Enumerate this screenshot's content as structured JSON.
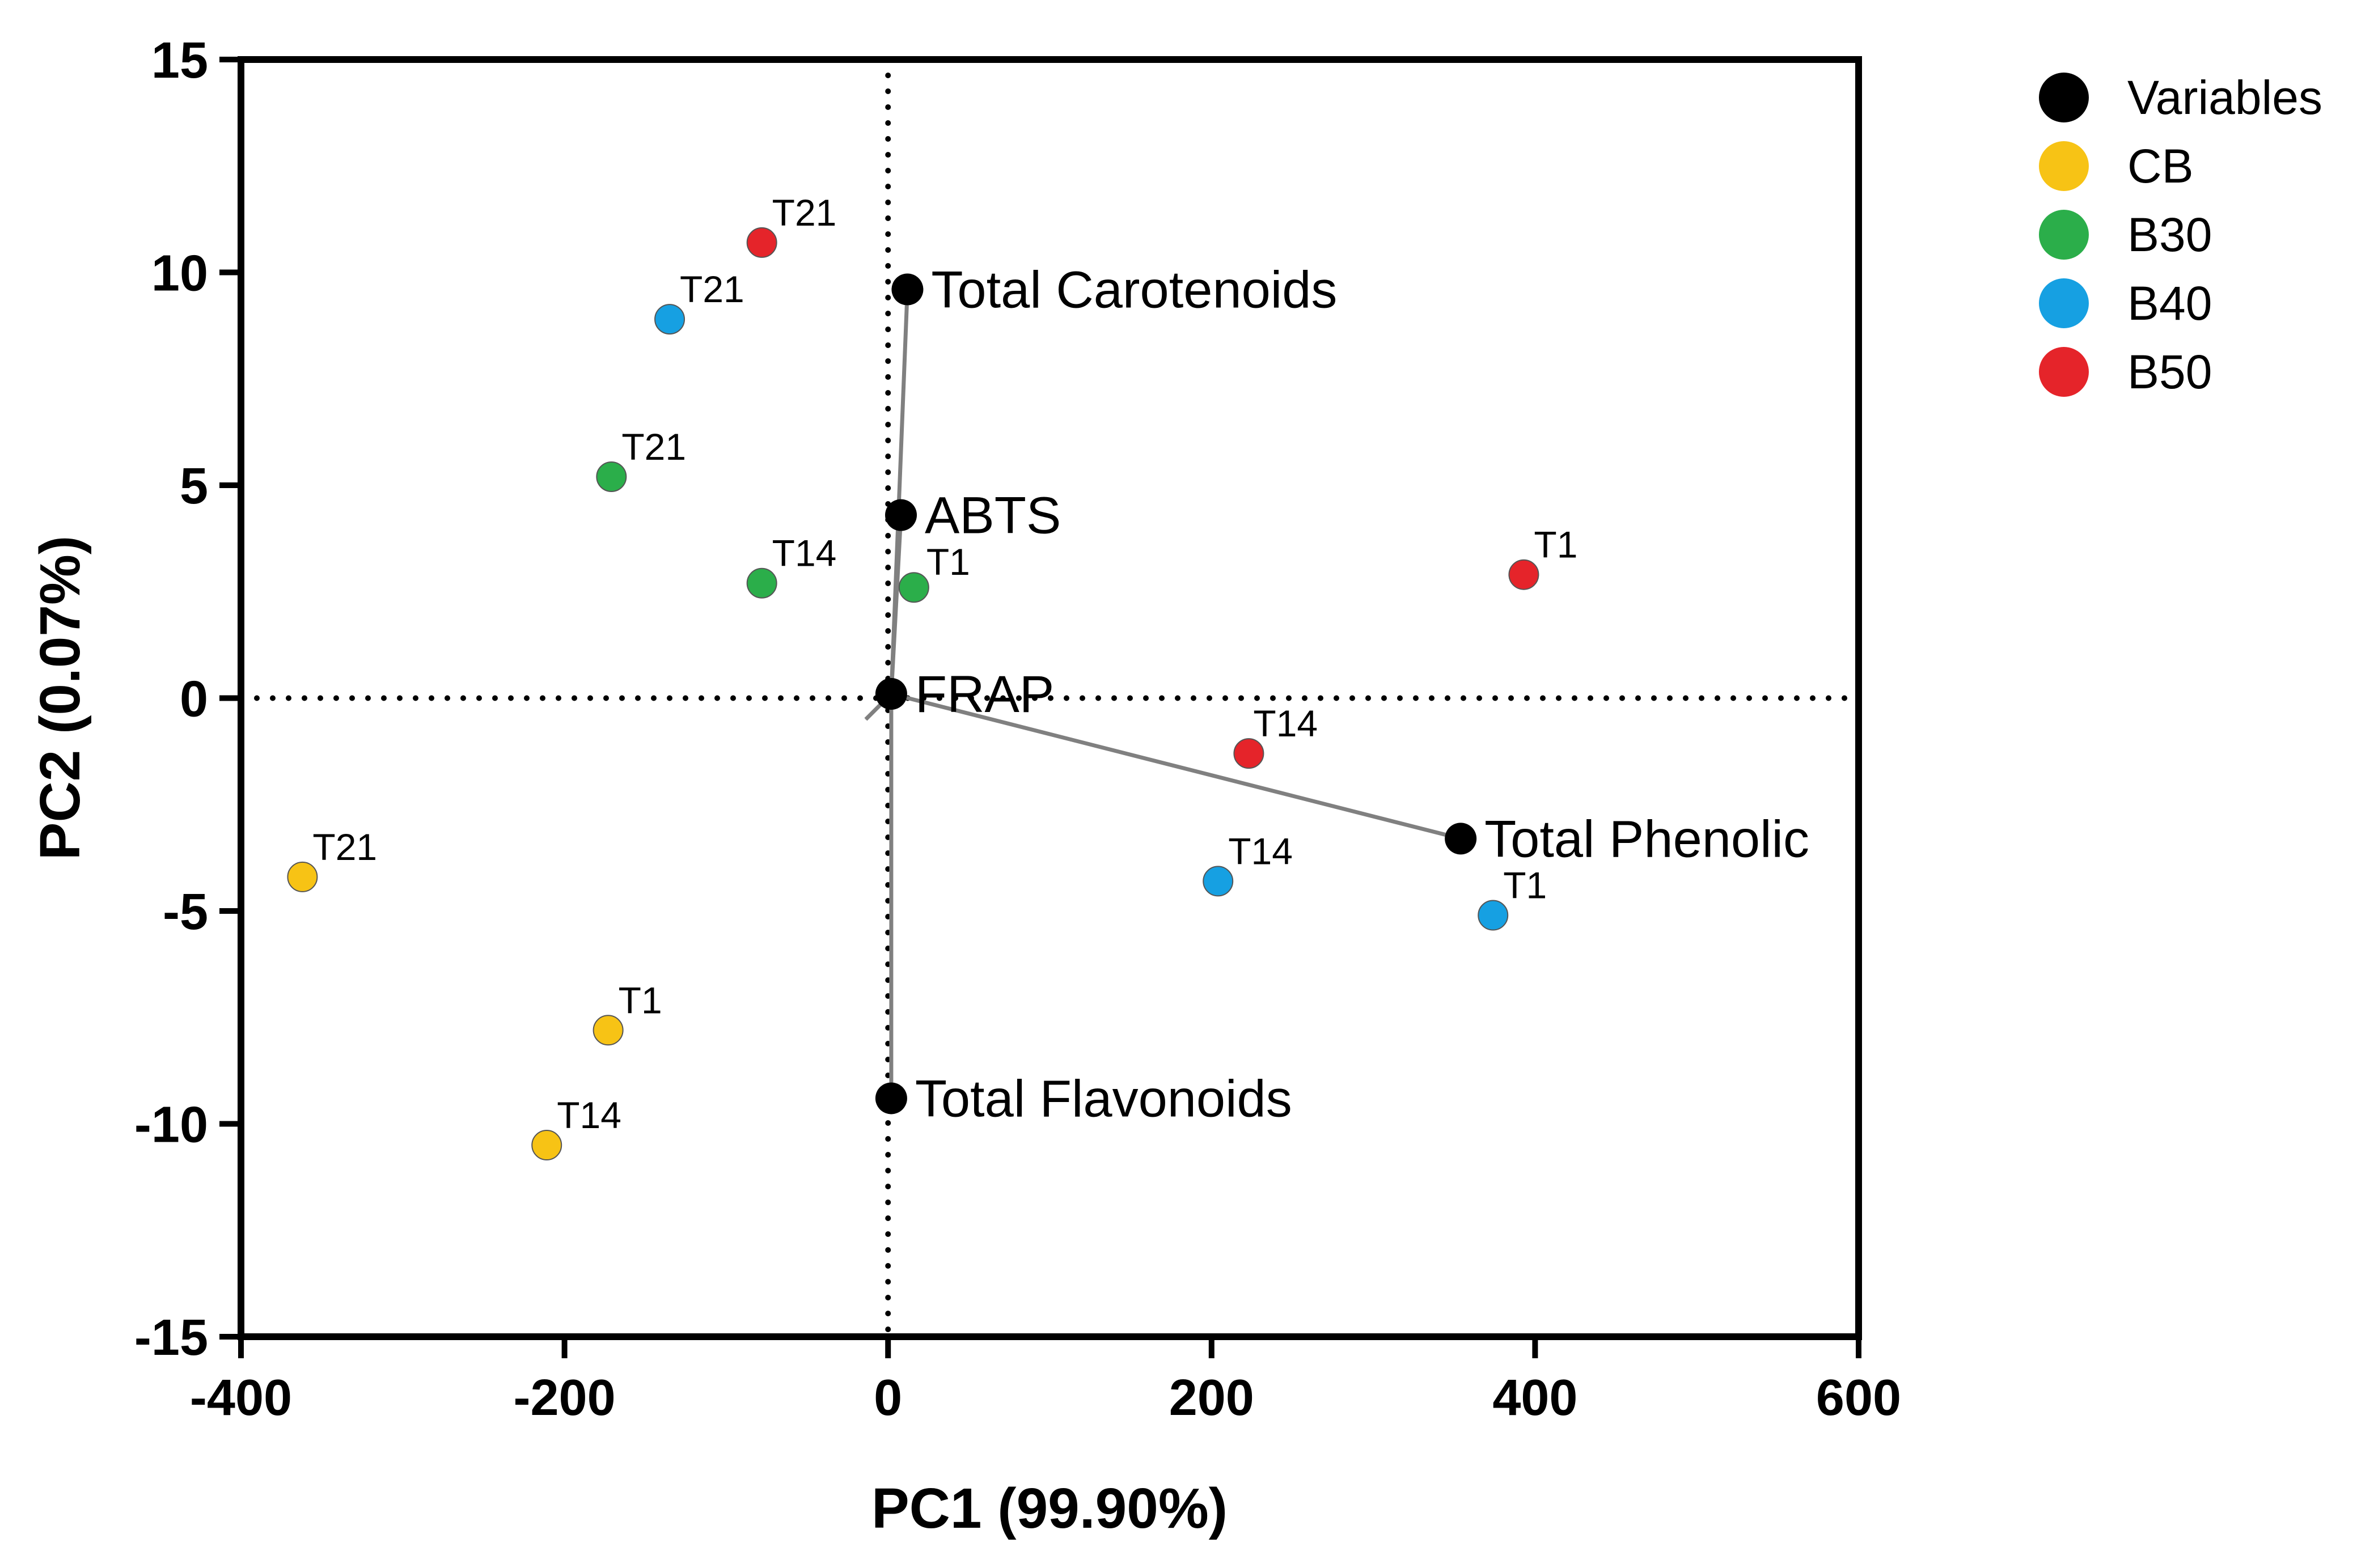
{
  "chart_data": {
    "type": "scatter",
    "xlabel": "PC1 (99.90%)",
    "ylabel": "PC2 (0.07%)",
    "xlim": [
      -400,
      600
    ],
    "ylim": [
      -15,
      15
    ],
    "xticks": [
      -400,
      -200,
      0,
      200,
      400,
      600
    ],
    "yticks": [
      -15,
      -10,
      -5,
      0,
      5,
      10,
      15
    ],
    "xtick_labels": [
      "-400",
      "-200",
      "0",
      "200",
      "400",
      "600"
    ],
    "ytick_labels": [
      "-15",
      "-10",
      "-5",
      "0",
      "5",
      "10",
      "15"
    ],
    "grid": false,
    "reference_lines": [
      "x = 0 (dotted)",
      "y = 0 (dotted)"
    ],
    "legend_position": "top-right, outside plot",
    "variables": {
      "name": "Variables",
      "color": "#000000",
      "origin": [
        2,
        0.1
      ],
      "points": [
        {
          "label": "Total Carotenoids",
          "x": 12,
          "y": 9.6
        },
        {
          "label": "ABTS",
          "x": 8,
          "y": 4.3
        },
        {
          "label": "FRAP",
          "x": 2,
          "y": 0.1
        },
        {
          "label": "Total Phenolic",
          "x": 354,
          "y": -3.3
        },
        {
          "label": "Total Flavonoids",
          "x": 2,
          "y": -9.4
        }
      ]
    },
    "series": [
      {
        "name": "CB",
        "color": "#F7C315",
        "points": [
          {
            "label": "T21",
            "x": -362,
            "y": -4.2
          },
          {
            "label": "T1",
            "x": -173,
            "y": -7.8
          },
          {
            "label": "T14",
            "x": -211,
            "y": -10.5
          }
        ]
      },
      {
        "name": "B30",
        "color": "#2BAE4A",
        "points": [
          {
            "label": "T21",
            "x": -171,
            "y": 5.2
          },
          {
            "label": "T14",
            "x": -78,
            "y": 2.7
          },
          {
            "label": "T1",
            "x": 16,
            "y": 2.6
          }
        ]
      },
      {
        "name": "B40",
        "color": "#16A0E2",
        "points": [
          {
            "label": "T21",
            "x": -135,
            "y": 8.9
          },
          {
            "label": "T14",
            "x": 204,
            "y": -4.3
          },
          {
            "label": "T1",
            "x": 374,
            "y": -5.1
          }
        ]
      },
      {
        "name": "B50",
        "color": "#E5242A",
        "points": [
          {
            "label": "T21",
            "x": -78,
            "y": 10.7
          },
          {
            "label": "T1",
            "x": 393,
            "y": 2.9
          },
          {
            "label": "T14",
            "x": 223,
            "y": -1.3
          }
        ]
      }
    ]
  }
}
